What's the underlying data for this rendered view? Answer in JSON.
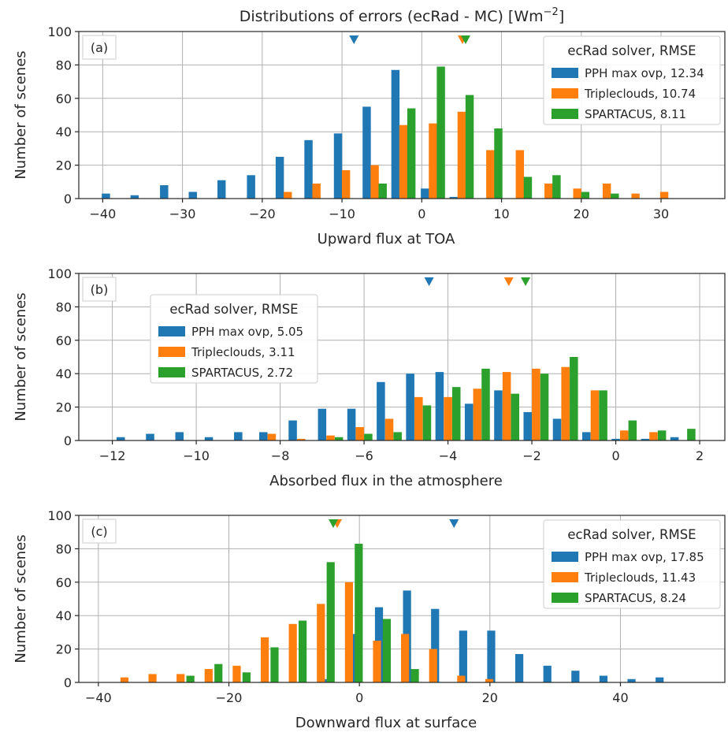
{
  "figure_title": "Distributions of errors (ecRad - MC) [Wm",
  "figure_title_sup": "−2",
  "figure_title_end": "]",
  "colors": {
    "PPH max ovp": "#1f77b4",
    "Tripleclouds": "#ff7f0e",
    "SPARTACUS": "#2ca02c"
  },
  "chart_data": [
    {
      "type": "bar",
      "panel_label": "(a)",
      "xlabel": "Upward flux at TOA",
      "ylabel": "Number of scenes",
      "xlim": [
        -43,
        38
      ],
      "ylim": [
        0,
        100
      ],
      "xticks": [
        -40,
        -30,
        -20,
        -10,
        0,
        10,
        20,
        30
      ],
      "yticks": [
        0,
        20,
        40,
        60,
        80,
        100
      ],
      "grid": true,
      "bin_width": 3.6,
      "legend_title": "ecRad solver, RMSE",
      "legend_position": "top-right",
      "series": [
        {
          "name": "PPH max ovp",
          "legend": "PPH max ovp, 12.34",
          "mean": -8.5,
          "bars": [
            [
              -39.6,
              3
            ],
            [
              -36.0,
              2
            ],
            [
              -32.3,
              8
            ],
            [
              -28.7,
              4
            ],
            [
              -25.1,
              11
            ],
            [
              -21.4,
              14
            ],
            [
              -17.8,
              25
            ],
            [
              -14.2,
              35
            ],
            [
              -10.5,
              39
            ],
            [
              -6.9,
              55
            ],
            [
              -3.3,
              77
            ],
            [
              0.4,
              6
            ],
            [
              4.0,
              1
            ]
          ]
        },
        {
          "name": "Tripleclouds",
          "legend": "Tripleclouds, 10.74",
          "mean": 5.1,
          "bars": [
            [
              -16.8,
              4
            ],
            [
              -13.2,
              9
            ],
            [
              -9.5,
              17
            ],
            [
              -5.9,
              20
            ],
            [
              -2.3,
              44
            ],
            [
              1.4,
              45
            ],
            [
              5.0,
              52
            ],
            [
              8.6,
              29
            ],
            [
              12.3,
              29
            ],
            [
              15.9,
              9
            ],
            [
              19.5,
              6
            ],
            [
              23.2,
              9
            ],
            [
              26.8,
              3
            ],
            [
              30.4,
              4
            ]
          ]
        },
        {
          "name": "SPARTACUS",
          "legend": "SPARTACUS, 8.11",
          "mean": 5.5,
          "bars": [
            [
              -4.9,
              9
            ],
            [
              -1.3,
              54
            ],
            [
              2.4,
              79
            ],
            [
              6.0,
              62
            ],
            [
              9.6,
              42
            ],
            [
              13.3,
              13
            ],
            [
              16.9,
              14
            ],
            [
              20.5,
              4
            ],
            [
              24.2,
              3
            ]
          ]
        }
      ]
    },
    {
      "type": "bar",
      "panel_label": "(b)",
      "xlabel": "Absorbed flux in the atmosphere",
      "ylabel": "Number of scenes",
      "xlim": [
        -12.8,
        2.6
      ],
      "ylim": [
        0,
        100
      ],
      "xticks": [
        -12,
        -10,
        -8,
        -6,
        -4,
        -2,
        0,
        2
      ],
      "yticks": [
        0,
        20,
        40,
        60,
        80,
        100
      ],
      "grid": true,
      "bin_width": 0.69,
      "legend_title": "ecRad solver, RMSE",
      "legend_position": "upper-left",
      "series": [
        {
          "name": "PPH max ovp",
          "legend": "PPH max ovp, 5.05",
          "mean": -4.45,
          "bars": [
            [
              -11.8,
              2
            ],
            [
              -11.1,
              4
            ],
            [
              -10.4,
              5
            ],
            [
              -9.7,
              2
            ],
            [
              -9.0,
              5
            ],
            [
              -8.4,
              5
            ],
            [
              -7.7,
              12
            ],
            [
              -7.0,
              19
            ],
            [
              -6.3,
              19
            ],
            [
              -5.6,
              35
            ],
            [
              -4.9,
              40
            ],
            [
              -4.2,
              41
            ],
            [
              -3.5,
              22
            ],
            [
              -2.8,
              30
            ],
            [
              -2.1,
              17
            ],
            [
              -1.4,
              13
            ],
            [
              -0.7,
              5
            ],
            [
              0.0,
              1
            ],
            [
              0.7,
              1
            ],
            [
              1.4,
              2
            ]
          ]
        },
        {
          "name": "Tripleclouds",
          "legend": "Tripleclouds, 3.11",
          "mean": -2.55,
          "bars": [
            [
              -8.2,
              4
            ],
            [
              -7.5,
              1
            ],
            [
              -6.8,
              3
            ],
            [
              -6.1,
              8
            ],
            [
              -5.4,
              13
            ],
            [
              -4.7,
              26
            ],
            [
              -4.0,
              26
            ],
            [
              -3.3,
              31
            ],
            [
              -2.6,
              41
            ],
            [
              -1.9,
              43
            ],
            [
              -1.2,
              44
            ],
            [
              -0.5,
              30
            ],
            [
              0.2,
              6
            ],
            [
              0.9,
              5
            ]
          ]
        },
        {
          "name": "SPARTACUS",
          "legend": "SPARTACUS, 2.72",
          "mean": -2.15,
          "bars": [
            [
              -6.6,
              2
            ],
            [
              -5.9,
              4
            ],
            [
              -5.2,
              5
            ],
            [
              -4.5,
              21
            ],
            [
              -3.8,
              32
            ],
            [
              -3.1,
              43
            ],
            [
              -2.4,
              28
            ],
            [
              -1.7,
              40
            ],
            [
              -1.0,
              50
            ],
            [
              -0.3,
              30
            ],
            [
              0.4,
              12
            ],
            [
              1.1,
              6
            ],
            [
              1.8,
              7
            ]
          ]
        }
      ]
    },
    {
      "type": "bar",
      "panel_label": "(c)",
      "xlabel": "Downward flux at surface",
      "ylabel": "Number of scenes",
      "xlim": [
        -43,
        56
      ],
      "ylim": [
        0,
        100
      ],
      "xticks": [
        -40,
        -20,
        0,
        20,
        40
      ],
      "yticks": [
        0,
        20,
        40,
        60,
        80,
        100
      ],
      "grid": true,
      "bin_width": 4.3,
      "legend_title": "ecRad solver, RMSE",
      "legend_position": "top-right",
      "series": [
        {
          "name": "PPH max ovp",
          "legend": "PPH max ovp, 17.85",
          "mean": 14.5,
          "bars": [
            [
              -5.6,
              2
            ],
            [
              -1.3,
              29
            ],
            [
              3.0,
              45
            ],
            [
              7.3,
              55
            ],
            [
              11.6,
              44
            ],
            [
              15.9,
              31
            ],
            [
              20.2,
              31
            ],
            [
              24.5,
              17
            ],
            [
              28.8,
              10
            ],
            [
              33.1,
              7
            ],
            [
              37.4,
              4
            ],
            [
              41.7,
              2
            ],
            [
              46.0,
              3
            ]
          ]
        },
        {
          "name": "Tripleclouds",
          "legend": "Tripleclouds, 11.43",
          "mean": -3.4,
          "bars": [
            [
              -36.0,
              3
            ],
            [
              -31.7,
              5
            ],
            [
              -27.4,
              5
            ],
            [
              -23.1,
              8
            ],
            [
              -18.8,
              10
            ],
            [
              -14.5,
              27
            ],
            [
              -10.2,
              35
            ],
            [
              -5.9,
              47
            ],
            [
              -1.6,
              60
            ],
            [
              2.7,
              25
            ],
            [
              7.0,
              29
            ],
            [
              11.3,
              20
            ],
            [
              15.6,
              4
            ],
            [
              19.9,
              2
            ]
          ]
        },
        {
          "name": "SPARTACUS",
          "legend": "SPARTACUS, 8.24",
          "mean": -4.0,
          "bars": [
            [
              -25.9,
              4
            ],
            [
              -21.6,
              11
            ],
            [
              -17.3,
              6
            ],
            [
              -13.0,
              21
            ],
            [
              -8.7,
              37
            ],
            [
              -4.4,
              72
            ],
            [
              -0.1,
              83
            ],
            [
              4.2,
              38
            ],
            [
              8.5,
              8
            ]
          ]
        }
      ]
    }
  ]
}
